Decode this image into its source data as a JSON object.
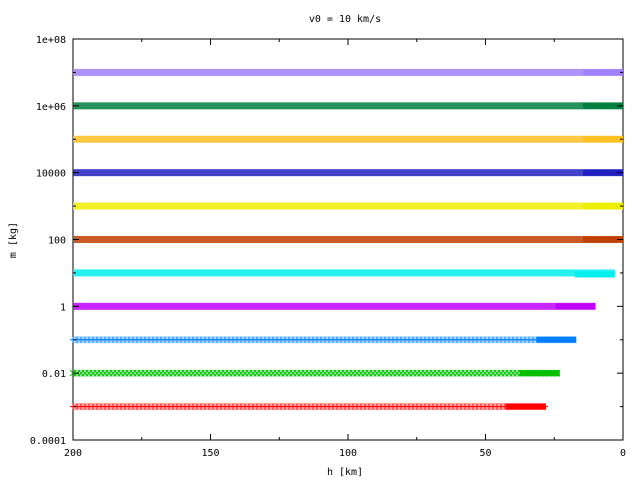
{
  "chart_data": {
    "type": "scatter",
    "title": "v0 = 10 km/s",
    "xlabel": "h [km]",
    "ylabel": "m [kg]",
    "xlim": [
      200,
      0
    ],
    "xreversed": true,
    "ylim": [
      0.0001,
      100000000
    ],
    "yscale": "log",
    "grid": false,
    "legend": "none",
    "x_ticks": [
      "200",
      "150",
      "100",
      "50",
      "0"
    ],
    "x_tick_values": [
      200,
      150,
      100,
      50,
      0
    ],
    "y_ticks": [
      "0.0001",
      "0.01",
      "1",
      "100",
      "10000",
      "1e+06",
      "1e+08"
    ],
    "y_tick_values": [
      0.0001,
      0.01,
      1,
      100,
      10000,
      1000000,
      100000000
    ],
    "series": [
      {
        "marker": "plus",
        "color": "#ff0000",
        "mass": 0.001,
        "x_start": 200,
        "x_end": 28,
        "final_mass": 0.001
      },
      {
        "marker": "cross",
        "color": "#00c000",
        "mass": 0.01,
        "x_start": 200,
        "x_end": 23,
        "final_mass": 0.01
      },
      {
        "marker": "asterisk",
        "color": "#0080ff",
        "mass": 0.1,
        "x_start": 200,
        "x_end": 17,
        "final_mass": 0.1
      },
      {
        "marker": "box",
        "color": "#c000ff",
        "mass": 1,
        "x_start": 200,
        "x_end": 10,
        "final_mass": 1
      },
      {
        "marker": "filled-box",
        "color": "#00eeee",
        "mass": 10,
        "x_start": 200,
        "x_end": 3,
        "final_mass": 9
      },
      {
        "marker": "circle",
        "color": "#c04000",
        "mass": 100,
        "x_start": 200,
        "x_end": 0,
        "final_mass": 100
      },
      {
        "marker": "filled-circle",
        "color": "#eeee00",
        "mass": 1000,
        "x_start": 200,
        "x_end": 0,
        "final_mass": 1000
      },
      {
        "marker": "triangle",
        "color": "#2020c0",
        "mass": 10000,
        "x_start": 200,
        "x_end": 0,
        "final_mass": 10000
      },
      {
        "marker": "filled-triangle",
        "color": "#ffc020",
        "mass": 100000,
        "x_start": 200,
        "x_end": 0,
        "final_mass": 100000
      },
      {
        "marker": "inv-triangle",
        "color": "#008040",
        "mass": 1000000,
        "x_start": 200,
        "x_end": 0,
        "final_mass": 1000000
      },
      {
        "marker": "filled-inv-triangle",
        "color": "#a080ff",
        "mass": 10000000,
        "x_start": 200,
        "x_end": 0,
        "final_mass": 10000000
      }
    ]
  }
}
